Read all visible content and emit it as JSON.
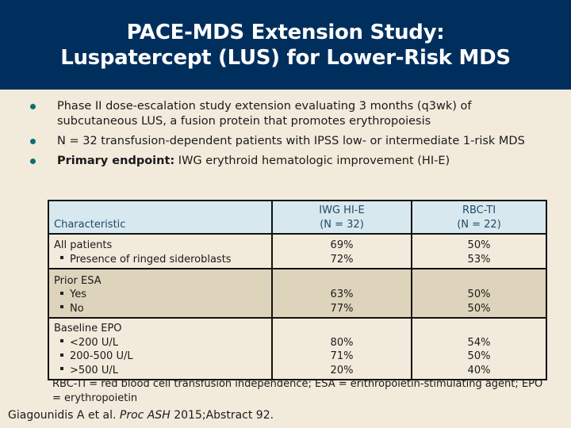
{
  "header": {
    "title_line1": "PACE-MDS Extension Study:",
    "title_line2": "Luspatercept (LUS) for Lower-Risk MDS",
    "background": "#002f5e"
  },
  "bullets": [
    {
      "text": "Phase II dose-escalation study extension evaluating 3 months (q3wk) of subcutaneous LUS, a fusion protein that promotes erythropoiesis"
    },
    {
      "text": "N = 32 transfusion-dependent patients with IPSS low- or intermediate 1-risk MDS"
    },
    {
      "bold": "Primary endpoint:",
      "text": " IWG erythroid hematologic improvement (HI-E)"
    }
  ],
  "table": {
    "headers": {
      "characteristic": "Characteristic",
      "col1_line1": "IWG HI-E",
      "col1_line2": "(N = 32)",
      "col2_line1": "RBC-TI",
      "col2_line2": "(N = 22)"
    },
    "groups": [
      {
        "label": "All patients",
        "label_value1": "69%",
        "label_value2": "50%",
        "rows": [
          {
            "label": "Presence of ringed sideroblasts",
            "v1": "72%",
            "v2": "53%"
          }
        ]
      },
      {
        "label": "Prior ESA",
        "rows": [
          {
            "label": "Yes",
            "v1": "63%",
            "v2": "50%"
          },
          {
            "label": "No",
            "v1": "77%",
            "v2": "50%"
          }
        ]
      },
      {
        "label": "Baseline EPO",
        "rows": [
          {
            "label": "<200 U/L",
            "v1": "80%",
            "v2": "54%"
          },
          {
            "label": "200-500 U/L",
            "v1": "71%",
            "v2": "50%"
          },
          {
            "label": ">500 U/L",
            "v1": "20%",
            "v2": "40%"
          }
        ]
      }
    ]
  },
  "footnote": "RBC-TI = red blood cell transfusion independence; ESA = erithropoietin-stimulating agent; EPO = erythropoietin",
  "citation": {
    "authors": "Giagounidis A et al. ",
    "journal": "Proc ASH",
    "rest": " 2015;Abstract 92."
  }
}
